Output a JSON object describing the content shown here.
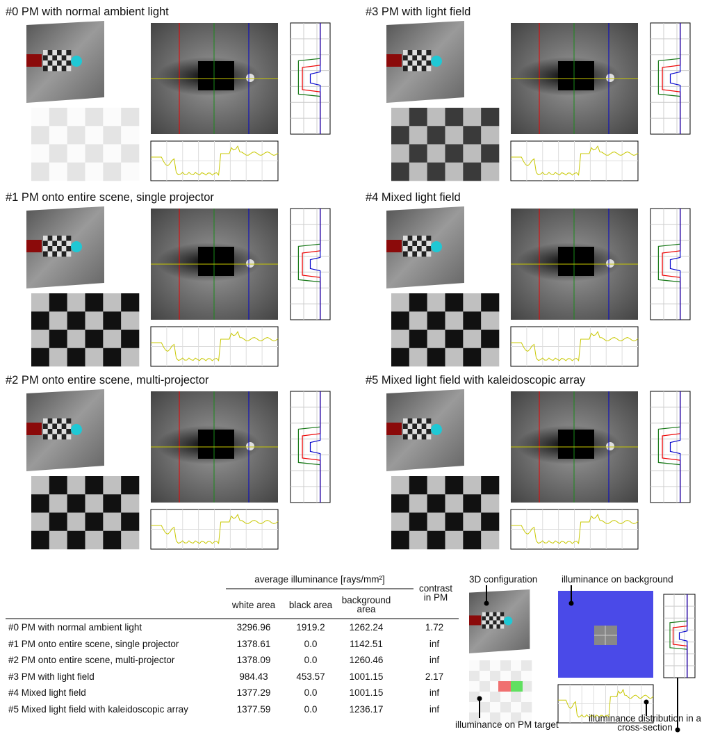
{
  "panels": [
    {
      "title": "#0 PM with normal ambient light"
    },
    {
      "title": "#1 PM onto entire scene, single projector"
    },
    {
      "title": "#2 PM onto entire scene, multi-projector"
    },
    {
      "title": "#3 PM with light field"
    },
    {
      "title": "#4 Mixed light field"
    },
    {
      "title": "#5 Mixed light field with kaleidoscopic array"
    }
  ],
  "table": {
    "header": {
      "group": "average illuminance [rays/mm²]",
      "contrast": "contrast in PM",
      "columns": [
        "white area",
        "black area",
        "background area"
      ]
    },
    "rows": [
      [
        "#0 PM with normal ambient light",
        "3296.96",
        "1919.2",
        "1262.24",
        "1.72"
      ],
      [
        "#1 PM onto entire scene, single projector",
        "1378.61",
        "0.0",
        "1142.51",
        "inf"
      ],
      [
        "#2 PM onto entire scene, multi-projector",
        "1378.09",
        "0.0",
        "1260.46",
        "inf"
      ],
      [
        "#3 PM with light field",
        "984.43",
        "453.57",
        "1001.15",
        "2.17"
      ],
      [
        "#4 Mixed light field",
        "1377.29",
        "0.0",
        "1001.15",
        "inf"
      ],
      [
        "#5 Mixed light field with kaleidoscopic array",
        "1377.59",
        "0.0",
        "1236.17",
        "inf"
      ]
    ]
  },
  "legend": {
    "config": "3D configuration",
    "background": "illuminance on background",
    "target": "illuminance on PM target",
    "distribution": "illuminance distribution in a cross-section"
  }
}
